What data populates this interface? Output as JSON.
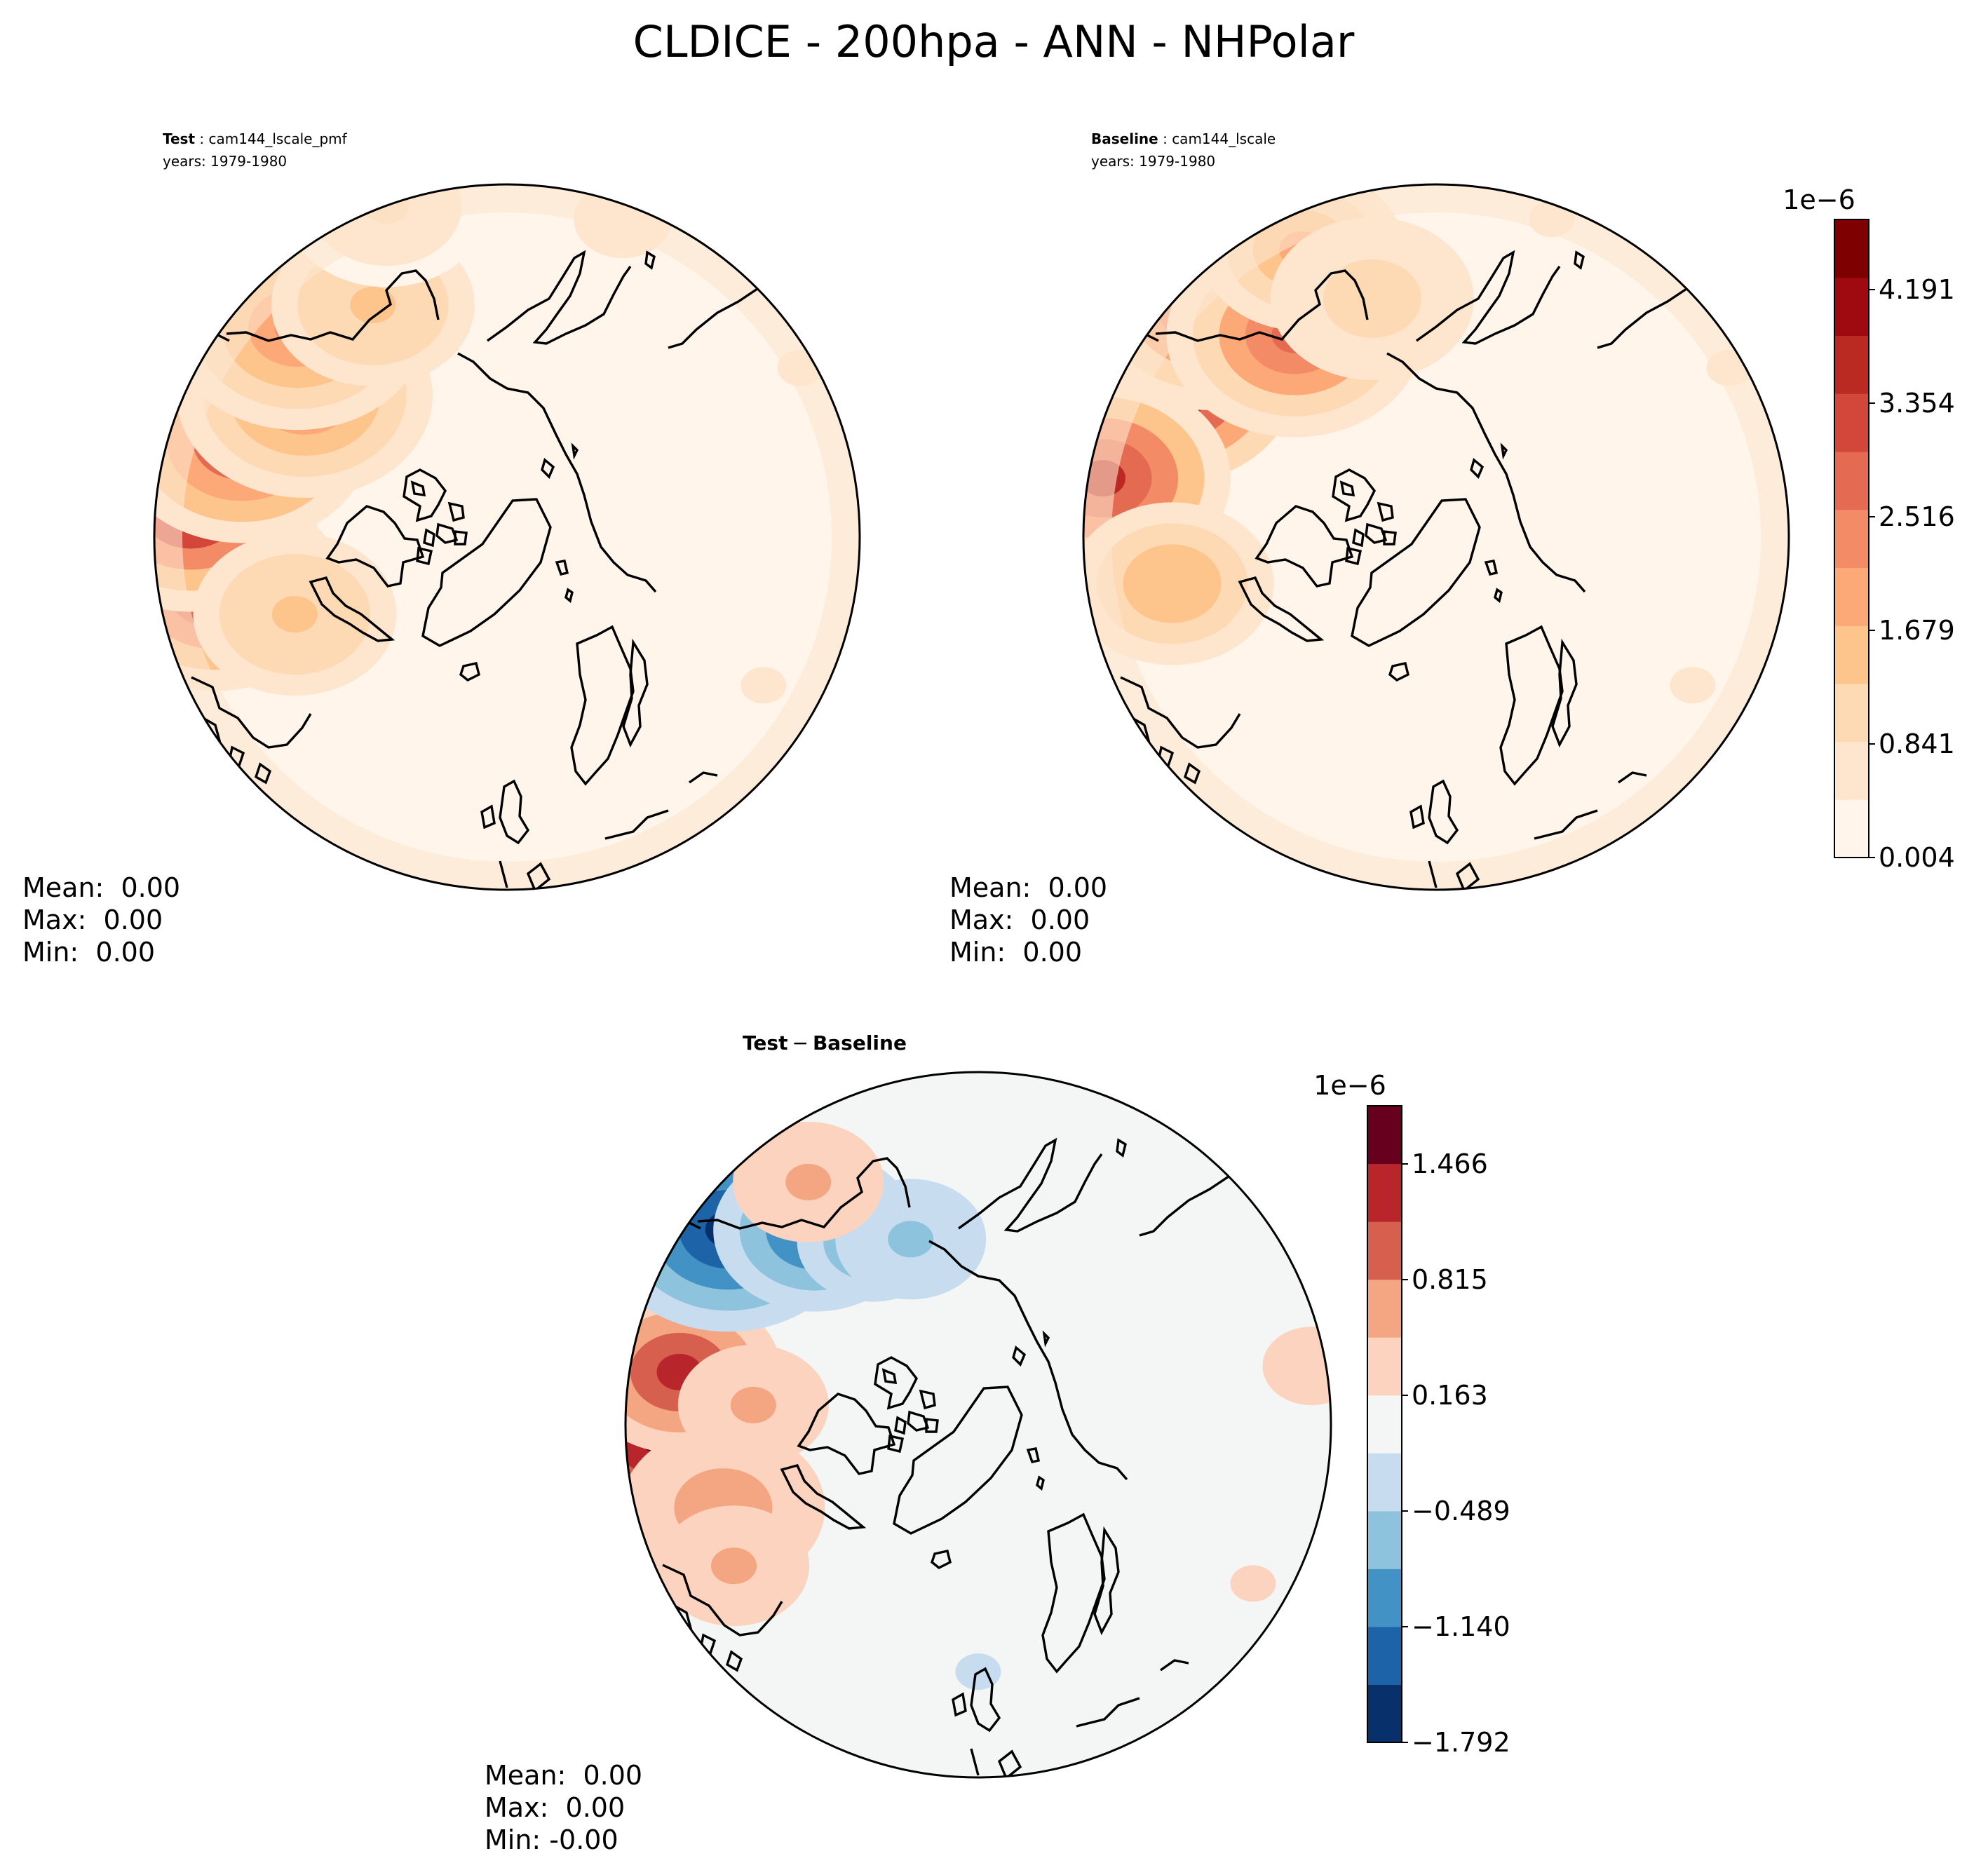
{
  "figure": {
    "title": "CLDICE - 200hpa - ANN - NHPolar"
  },
  "colors": {
    "seq": [
      "#fff5eb",
      "#fee6ce",
      "#fdd9b4",
      "#fdc48c",
      "#fca877",
      "#f48b67",
      "#e56a52",
      "#d2473a",
      "#bb2a22",
      "#9e0a10",
      "#7f0000"
    ],
    "div": [
      "#08306b",
      "#1c63a8",
      "#4292c6",
      "#8ec3de",
      "#c7dcef",
      "#f4f6f6",
      "#fbd3bf",
      "#f4a582",
      "#d6604d",
      "#b8252a",
      "#67001f"
    ],
    "coast": "#000000"
  },
  "chart_data": [
    {
      "type": "heatmap",
      "projection": "north-polar-stereographic",
      "title_bold": "Test",
      "title_name": "cam144_lscale_pmf",
      "title_years": "years: 1979-1980",
      "stats": {
        "mean": "Mean:  0.00",
        "max": "Max:  0.00",
        "min": "Min:  0.00"
      },
      "field": [
        {
          "lon": 80,
          "lat": 48,
          "v": 3.5
        },
        {
          "lon": 95,
          "lat": 45,
          "v": 3.9
        },
        {
          "lon": 110,
          "lat": 50,
          "v": 3.3
        },
        {
          "lon": 125,
          "lat": 55,
          "v": 2.2
        },
        {
          "lon": 70,
          "lat": 58,
          "v": 1.4
        },
        {
          "lon": 135,
          "lat": 48,
          "v": 2.4
        },
        {
          "lon": 150,
          "lat": 52,
          "v": 1.4
        },
        {
          "lon": 160,
          "lat": 40,
          "v": 1.0
        },
        {
          "lon": -160,
          "lat": 42,
          "v": 0.6
        },
        {
          "lon": -120,
          "lat": 42,
          "v": 0.5
        },
        {
          "lon": -60,
          "lat": 48,
          "v": 0.5
        },
        {
          "lon": 30,
          "lat": 45,
          "v": 0.3
        }
      ]
    },
    {
      "type": "heatmap",
      "projection": "north-polar-stereographic",
      "title_bold": "Baseline",
      "title_name": "cam144_lscale",
      "title_years": "years: 1979-1980",
      "stats": {
        "mean": "Mean:  0.00",
        "max": "Max:  0.00",
        "min": "Min:  0.00"
      },
      "colorbar": {
        "exponent": "1e−6",
        "ticks": [
          "0.004",
          "0.841",
          "1.679",
          "2.516",
          "3.354",
          "4.191"
        ],
        "levels": 11
      },
      "field": [
        {
          "lon": 120,
          "lat": 46,
          "v": 4.6
        },
        {
          "lon": 100,
          "lat": 42,
          "v": 3.6
        },
        {
          "lon": 135,
          "lat": 44,
          "v": 3.0
        },
        {
          "lon": 145,
          "lat": 55,
          "v": 2.8
        },
        {
          "lon": 80,
          "lat": 52,
          "v": 1.6
        },
        {
          "lon": 155,
          "lat": 45,
          "v": 1.8
        },
        {
          "lon": 165,
          "lat": 55,
          "v": 1.2
        },
        {
          "lon": -160,
          "lat": 42,
          "v": 0.5
        },
        {
          "lon": -120,
          "lat": 42,
          "v": 0.5
        },
        {
          "lon": -60,
          "lat": 48,
          "v": 0.5
        },
        {
          "lon": 30,
          "lat": 45,
          "v": 0.2
        }
      ]
    },
    {
      "type": "heatmap",
      "projection": "north-polar-stereographic",
      "title_bold": "Test",
      "title_op": "−",
      "title_bold2": "Baseline",
      "stats": {
        "mean": "Mean:  0.00",
        "max": "Max:  0.00",
        "min": "Min: -0.00"
      },
      "colorbar": {
        "exponent": "1e−6",
        "ticks": [
          "−1.792",
          "−1.140",
          "−0.489",
          "0.163",
          "0.815",
          "1.466"
        ],
        "levels": 11
      },
      "field": [
        {
          "lon": 88,
          "lat": 45,
          "v": 1.5
        },
        {
          "lon": 100,
          "lat": 47,
          "v": 1.2
        },
        {
          "lon": 72,
          "lat": 52,
          "v": 0.8
        },
        {
          "lon": 95,
          "lat": 58,
          "v": 0.6
        },
        {
          "lon": 60,
          "lat": 50,
          "v": 0.5
        },
        {
          "lon": 128,
          "lat": 45,
          "v": -1.6
        },
        {
          "lon": 140,
          "lat": 54,
          "v": -1.2
        },
        {
          "lon": 150,
          "lat": 60,
          "v": -0.7
        },
        {
          "lon": 160,
          "lat": 62,
          "v": -0.5
        },
        {
          "lon": 145,
          "lat": 48,
          "v": 0.5
        },
        {
          "lon": -100,
          "lat": 42,
          "v": 0.4
        },
        {
          "lon": -60,
          "lat": 45,
          "v": 0.3
        },
        {
          "lon": 0,
          "lat": 55,
          "v": -0.3
        }
      ]
    }
  ]
}
